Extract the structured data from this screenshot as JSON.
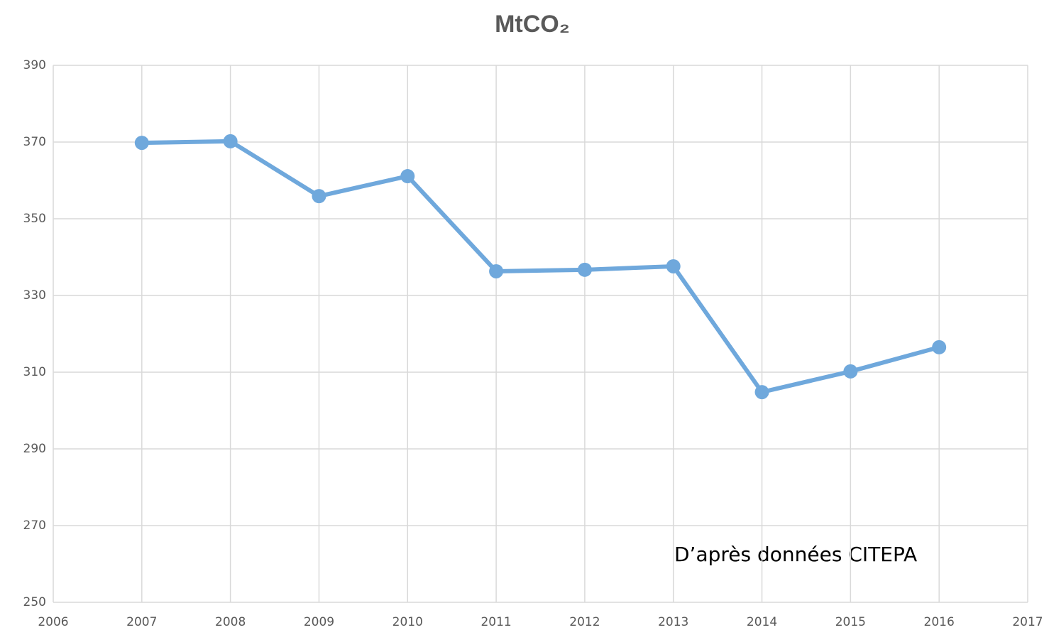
{
  "chart_data": {
    "type": "line",
    "title": "MtCO₂",
    "annotation": "D’après données CITEPA",
    "x": [
      2007,
      2008,
      2009,
      2010,
      2011,
      2012,
      2013,
      2014,
      2015,
      2016
    ],
    "series": [
      {
        "name": "MtCO₂",
        "color": "#6fa8dc",
        "values": [
          369.8,
          370.2,
          355.9,
          361.1,
          336.3,
          336.7,
          337.6,
          304.8,
          310.2,
          316.5
        ]
      }
    ],
    "xlim": [
      2006,
      2017
    ],
    "xticks": [
      2006,
      2007,
      2008,
      2009,
      2010,
      2011,
      2012,
      2013,
      2014,
      2015,
      2016,
      2017
    ],
    "ylim": [
      250,
      390
    ],
    "yticks": [
      250,
      270,
      290,
      310,
      330,
      350,
      370,
      390
    ],
    "grid": true
  }
}
